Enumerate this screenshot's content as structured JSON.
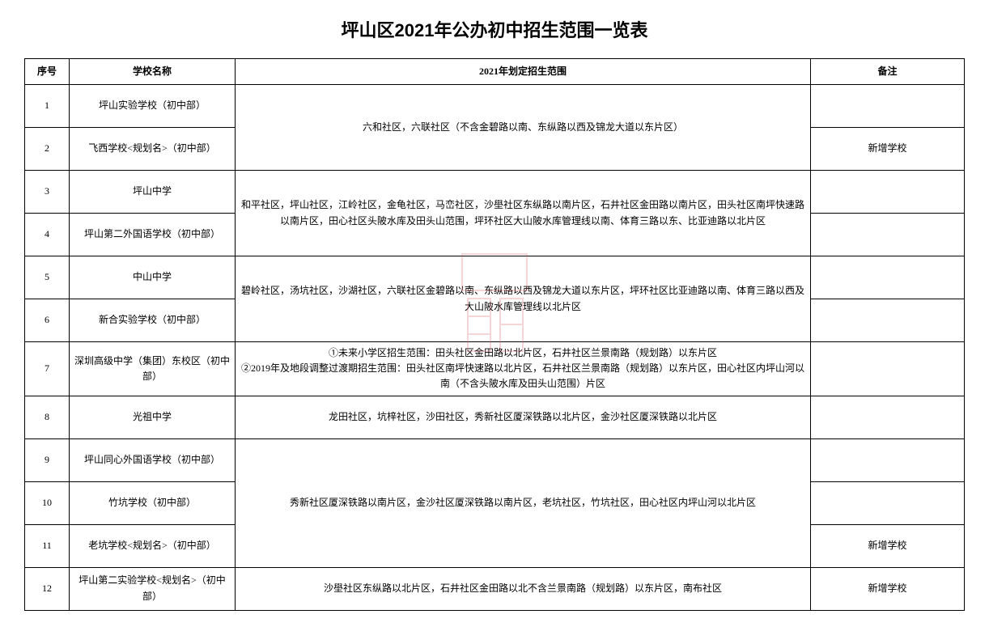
{
  "title": "坪山区2021年公办初中招生范围一览表",
  "columns": [
    "序号",
    "学校名称",
    "2021年划定招生范围",
    "备注"
  ],
  "groups": [
    {
      "scope": "六和社区，六联社区（不含金碧路以南、东纵路以西及锦龙大道以东片区）",
      "rows": [
        {
          "seq": "1",
          "school": "坪山实验学校（初中部）",
          "note": ""
        },
        {
          "seq": "2",
          "school": "飞西学校<规划名>（初中部）",
          "note": "新增学校"
        }
      ]
    },
    {
      "scope": "和平社区，坪山社区，江岭社区，金龟社区，马峦社区，沙壆社区东纵路以南片区，石井社区金田路以南片区，田头社区南坪快速路以南片区，田心社区头陂水库及田头山范围，坪环社区大山陂水库管理线以南、体育三路以东、比亚迪路以北片区",
      "rows": [
        {
          "seq": "3",
          "school": "坪山中学",
          "note": ""
        },
        {
          "seq": "4",
          "school": "坪山第二外国语学校（初中部）",
          "note": ""
        }
      ]
    },
    {
      "scope": "碧岭社区，汤坑社区，沙湖社区，六联社区金碧路以南、东纵路以西及锦龙大道以东片区，坪环社区比亚迪路以南、体育三路以西及大山陂水库管理线以北片区",
      "rows": [
        {
          "seq": "5",
          "school": "中山中学",
          "note": ""
        },
        {
          "seq": "6",
          "school": "新合实验学校（初中部）",
          "note": ""
        }
      ]
    },
    {
      "scope": "①未来小学区招生范围：田头社区金田路以北片区，石井社区兰景南路（规划路）以东片区\n②2019年及地段调整过渡期招生范围：田头社区南坪快速路以北片区，石井社区兰景南路（规划路）以东片区，田心社区内坪山河以南（不含头陂水库及田头山范围）片区",
      "rows": [
        {
          "seq": "7",
          "school": "深圳高级中学（集团）东校区（初中部）",
          "note": ""
        }
      ]
    },
    {
      "scope": "龙田社区，坑梓社区，沙田社区，秀新社区厦深铁路以北片区，金沙社区厦深铁路以北片区",
      "rows": [
        {
          "seq": "8",
          "school": "光祖中学",
          "note": ""
        }
      ]
    },
    {
      "scope": "秀新社区厦深铁路以南片区，金沙社区厦深铁路以南片区，老坑社区，竹坑社区，田心社区内坪山河以北片区",
      "rows": [
        {
          "seq": "9",
          "school": "坪山同心外国语学校（初中部）",
          "note": ""
        },
        {
          "seq": "10",
          "school": "竹坑学校（初中部）",
          "note": ""
        },
        {
          "seq": "11",
          "school": "老坑学校<规划名>（初中部）",
          "note": "新增学校"
        }
      ]
    },
    {
      "scope": "沙壆社区东纵路以北片区，石井社区金田路以北不含兰景南路（规划路）以东片区，南布社区",
      "rows": [
        {
          "seq": "12",
          "school": "坪山第二实验学校<规划名>（初中部）",
          "note": "新增学校"
        }
      ]
    }
  ],
  "watermark": {
    "stroke_color": "#d96060",
    "stroke_width": 2
  }
}
